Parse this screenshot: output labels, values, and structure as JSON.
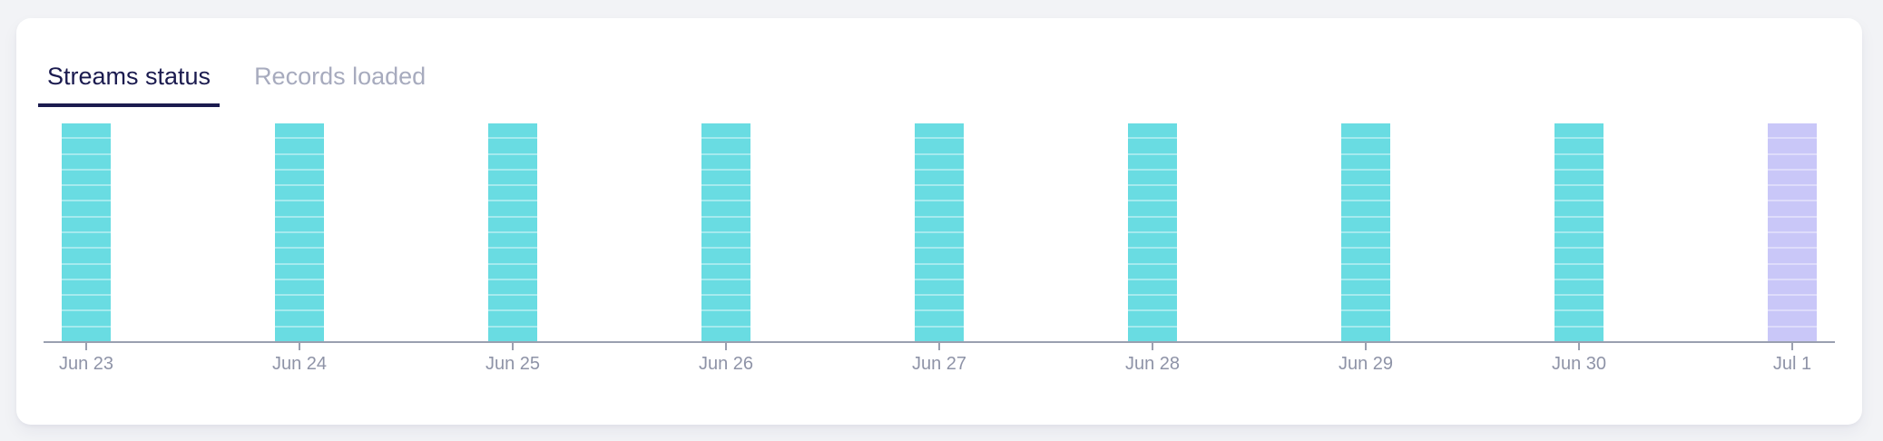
{
  "tabs": [
    {
      "label": "Streams status",
      "active": true
    },
    {
      "label": "Records loaded",
      "active": false
    }
  ],
  "chart_data": {
    "type": "bar",
    "subtype": "segmented-status-columns",
    "title": "Streams status",
    "xlabel": "",
    "ylabel": "",
    "grid": false,
    "legend": false,
    "categories": [
      "Jun 23",
      "Jun 24",
      "Jun 25",
      "Jun 26",
      "Jun 27",
      "Jun 28",
      "Jun 29",
      "Jun 30",
      "Jul 1"
    ],
    "bars": [
      {
        "date": "Jun 23",
        "status": "synced",
        "segments": 14
      },
      {
        "date": "Jun 24",
        "status": "synced",
        "segments": 14
      },
      {
        "date": "Jun 25",
        "status": "synced",
        "segments": 14
      },
      {
        "date": "Jun 26",
        "status": "synced",
        "segments": 14
      },
      {
        "date": "Jun 27",
        "status": "synced",
        "segments": 14
      },
      {
        "date": "Jun 28",
        "status": "synced",
        "segments": 14
      },
      {
        "date": "Jun 29",
        "status": "synced",
        "segments": 14
      },
      {
        "date": "Jun 30",
        "status": "synced",
        "segments": 14
      },
      {
        "date": "Jul 1",
        "status": "pending",
        "segments": 14
      }
    ],
    "status_colors": {
      "synced": "#69DCE2",
      "pending": "#C9C7F8"
    },
    "segment_divider_colors": {
      "synced": "#A5EAEE",
      "pending": "#DEDCFB"
    },
    "axis_color": "#9AA0B0",
    "tick_color": "#9AA0B0",
    "label_color": "#8E93A7"
  },
  "colors": {
    "page_bg": "#F2F3F6",
    "card_bg": "#FFFFFF",
    "active_tab": "#1B1B4F",
    "inactive_tab": "#A7ABBE",
    "tab_underline": "#1B1B4F"
  }
}
